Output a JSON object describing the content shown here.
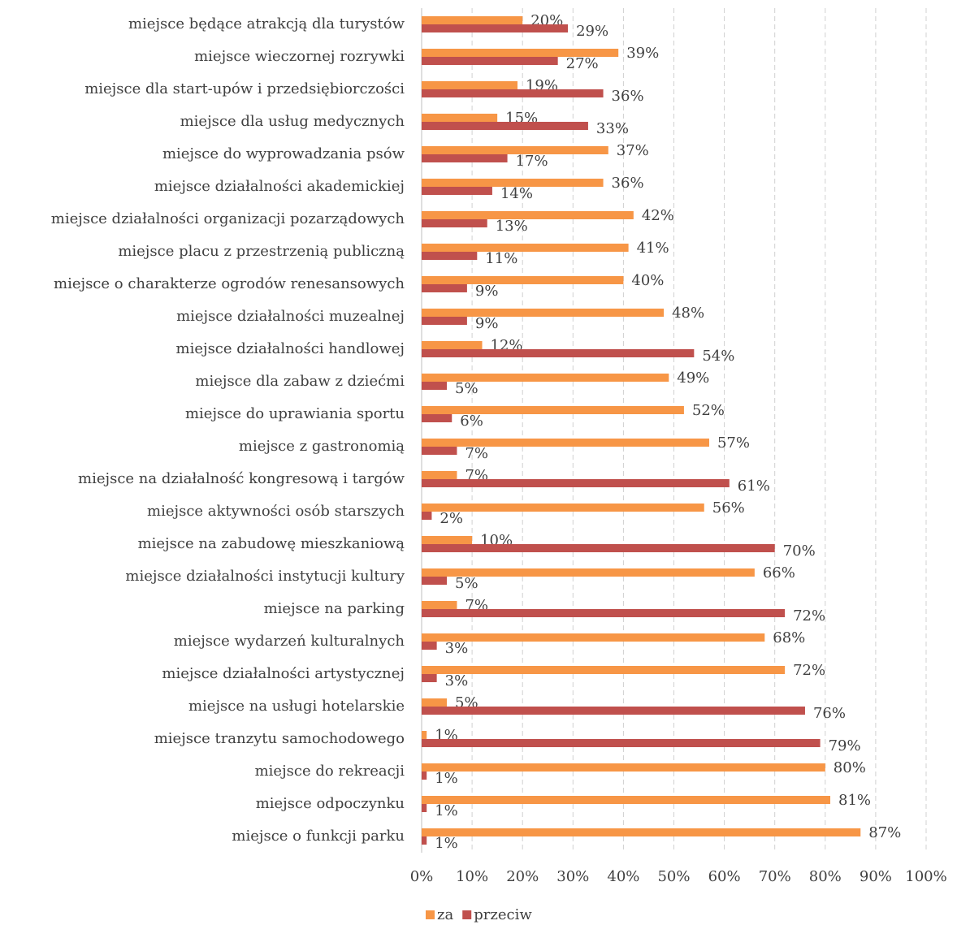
{
  "chart_data": {
    "type": "bar",
    "orientation": "horizontal",
    "categories": [
      "miejsce będące atrakcją dla turystów",
      "miejsce wieczornej rozrywki",
      "miejsce dla start-upów i przedsiębiorczości",
      "miejsce dla usług medycznych",
      "miejsce do wyprowadzania psów",
      "miejsce działalności akademickiej",
      "miejsce działalności organizacji pozarządowych",
      "miejsce placu z przestrzenią publiczną",
      "miejsce o charakterze ogrodów renesansowych",
      "miejsce działalności muzealnej",
      "miejsce działalności handlowej",
      "miejsce dla zabaw z dziećmi",
      "miejsce do uprawiania sportu",
      "miejsce z gastronomią",
      "miejsce na działalność kongresową i targów",
      "miejsce aktywności osób starszych",
      "miejsce na zabudowę mieszkaniową",
      "miejsce działalności instytucji kultury",
      "miejsce na parking",
      "miejsce wydarzeń kulturalnych",
      "miejsce działalności artystycznej",
      "miejsce na usługi hotelarskie",
      "miejsce tranzytu samochodowego",
      "miejsce do rekreacji",
      "miejsce odpoczynku",
      "miejsce o funkcji parku"
    ],
    "series": [
      {
        "name": "za",
        "color": "#f79646",
        "values": [
          20,
          39,
          19,
          15,
          37,
          36,
          42,
          41,
          40,
          48,
          12,
          49,
          52,
          57,
          7,
          56,
          10,
          66,
          7,
          68,
          72,
          5,
          1,
          80,
          81,
          87
        ],
        "value_labels": [
          "20%",
          "39%",
          "19%",
          "15%",
          "37%",
          "36%",
          "42%",
          "41%",
          "40%",
          "48%",
          "12%",
          "49%",
          "52%",
          "57%",
          "7%",
          "56%",
          "10%",
          "66%",
          "7%",
          "68%",
          "72%",
          "5%",
          "1%",
          "80%",
          "81%",
          "87%"
        ]
      },
      {
        "name": "przeciw",
        "color": "#c0504d",
        "values": [
          29,
          27,
          36,
          33,
          17,
          14,
          13,
          11,
          9,
          9,
          54,
          5,
          6,
          7,
          61,
          2,
          70,
          5,
          72,
          3,
          3,
          76,
          79,
          1,
          1,
          1
        ],
        "value_labels": [
          "29%",
          "27%",
          "36%",
          "33%",
          "17%",
          "14%",
          "13%",
          "11%",
          "9%",
          "9%",
          "54%",
          "5%",
          "6%",
          "7%",
          "61%",
          "2%",
          "70%",
          "5%",
          "72%",
          "3%",
          "3%",
          "76%",
          "79%",
          "1%",
          "1%",
          "1%"
        ]
      }
    ],
    "xlim": [
      0,
      100
    ],
    "xticks": [
      {
        "value": 0,
        "label": "0%"
      },
      {
        "value": 10,
        "label": "10%"
      },
      {
        "value": 20,
        "label": "20%"
      },
      {
        "value": 30,
        "label": "30%"
      },
      {
        "value": 40,
        "label": "40%"
      },
      {
        "value": 50,
        "label": "50%"
      },
      {
        "value": 60,
        "label": "60%"
      },
      {
        "value": 70,
        "label": "70%"
      },
      {
        "value": 80,
        "label": "80%"
      },
      {
        "value": 90,
        "label": "90%"
      },
      {
        "value": 100,
        "label": "100%"
      }
    ],
    "grid": true,
    "legend": "bottom"
  }
}
